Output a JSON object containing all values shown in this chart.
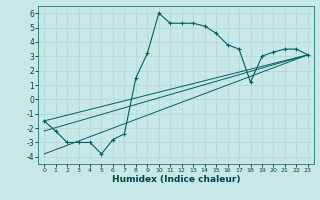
{
  "xlabel": "Humidex (Indice chaleur)",
  "background_color": "#c8e8e8",
  "grid_color": "#b0d4d4",
  "line_color": "#006060",
  "xlim": [
    -0.5,
    23.5
  ],
  "ylim": [
    -4.5,
    6.5
  ],
  "xticks": [
    0,
    1,
    2,
    3,
    4,
    5,
    6,
    7,
    8,
    9,
    10,
    11,
    12,
    13,
    14,
    15,
    16,
    17,
    18,
    19,
    20,
    21,
    22,
    23
  ],
  "yticks": [
    -4,
    -3,
    -2,
    -1,
    0,
    1,
    2,
    3,
    4,
    5,
    6
  ],
  "main_x": [
    0,
    1,
    2,
    3,
    4,
    5,
    6,
    7,
    8,
    9,
    10,
    11,
    12,
    13,
    14,
    15,
    16,
    17,
    18,
    19,
    20,
    21,
    22,
    23
  ],
  "main_y": [
    -1.5,
    -2.2,
    -3.0,
    -3.0,
    -3.0,
    -3.8,
    -2.8,
    -2.4,
    1.5,
    3.2,
    6.0,
    5.3,
    5.3,
    5.3,
    5.1,
    4.6,
    3.8,
    3.5,
    1.2,
    3.0,
    3.3,
    3.5,
    3.5,
    3.1
  ],
  "line1_x": [
    0,
    23
  ],
  "line1_y": [
    -1.5,
    3.1
  ],
  "line2_x": [
    0,
    23
  ],
  "line2_y": [
    -2.2,
    3.1
  ],
  "line3_x": [
    0,
    23
  ],
  "line3_y": [
    -3.8,
    3.1
  ]
}
